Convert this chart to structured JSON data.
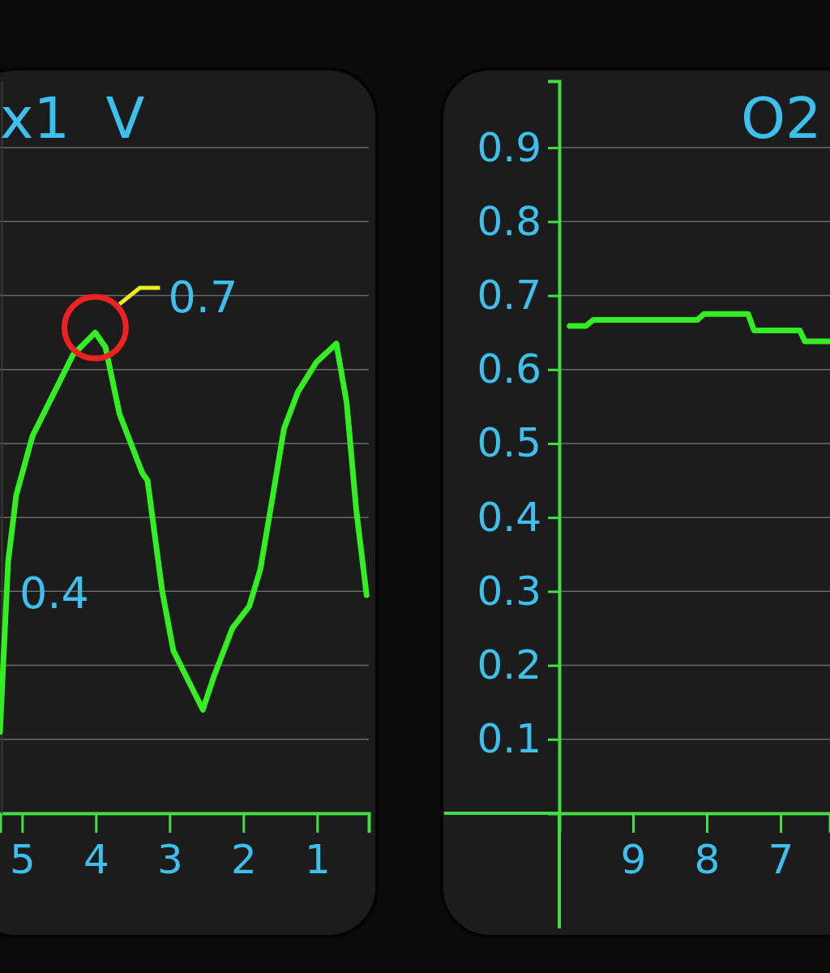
{
  "chart_data": [
    {
      "type": "line",
      "title": "x1  V",
      "xlim": [
        5.3,
        0.3
      ],
      "xticks": [
        5,
        4,
        3,
        2,
        1
      ],
      "ylim": [
        0,
        0.99
      ],
      "yticks": [
        0.1,
        0.2,
        0.3,
        0.4,
        0.5,
        0.6,
        0.7,
        0.8,
        0.9
      ],
      "grid": "y",
      "tick_labels": "x",
      "marker": "none",
      "line_style": "solid",
      "series": [
        {
          "color": "#33ee22",
          "x": [
            5.3,
            5.19,
            5.08,
            4.86,
            4.56,
            4.31,
            4.01,
            3.87,
            3.68,
            3.37,
            3.3,
            3.1,
            2.95,
            2.7,
            2.55,
            2.4,
            2.15,
            1.92,
            1.77,
            1.6,
            1.45,
            1.26,
            1.01,
            0.74,
            0.6,
            0.47,
            0.33
          ],
          "values": [
            0.11,
            0.34,
            0.43,
            0.51,
            0.57,
            0.62,
            0.65,
            0.63,
            0.54,
            0.46,
            0.45,
            0.3,
            0.22,
            0.17,
            0.14,
            0.185,
            0.25,
            0.28,
            0.33,
            0.43,
            0.52,
            0.57,
            0.61,
            0.635,
            0.555,
            0.41,
            0.295
          ]
        }
      ],
      "annotations": [
        {
          "text": "0.7",
          "x": 4.01,
          "y": 0.65
        },
        "0.4"
      ]
    },
    {
      "type": "line",
      "title": "O2",
      "xlim": [
        10,
        6.33
      ],
      "xticks": [
        9,
        8,
        7
      ],
      "ylim": [
        0,
        0.99
      ],
      "yticks": [
        0.1,
        0.2,
        0.3,
        0.4,
        0.5,
        0.6,
        0.7,
        0.8,
        0.9
      ],
      "grid": "y",
      "marker": "none",
      "line_style": "solid",
      "series": [
        {
          "color": "#33ee22",
          "x": [
            9.86,
            9.64,
            9.54,
            8.13,
            8.04,
            7.44,
            7.36,
            6.74,
            6.67,
            6.33
          ],
          "values": [
            0.659,
            0.659,
            0.667,
            0.667,
            0.675,
            0.675,
            0.653,
            0.653,
            0.638,
            0.638
          ]
        }
      ]
    }
  ]
}
